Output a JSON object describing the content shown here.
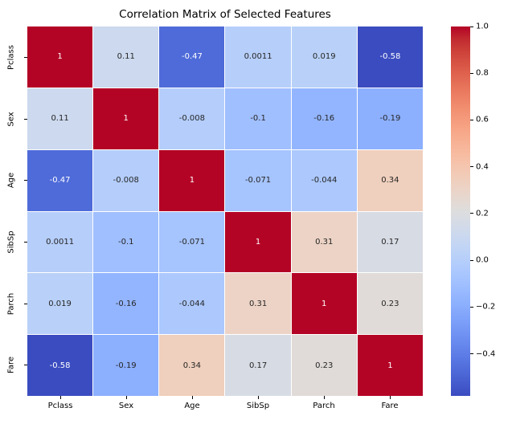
{
  "chart_data": {
    "type": "heatmap",
    "title": "Correlation Matrix of Selected Features",
    "xlabel": "",
    "ylabel": "",
    "categories": [
      "Pclass",
      "Sex",
      "Age",
      "SibSp",
      "Parch",
      "Fare"
    ],
    "matrix": [
      [
        1,
        0.11,
        -0.47,
        0.0011,
        0.019,
        -0.58
      ],
      [
        0.11,
        1,
        -0.008,
        -0.1,
        -0.16,
        -0.19
      ],
      [
        -0.47,
        -0.008,
        1,
        -0.071,
        -0.044,
        0.34
      ],
      [
        0.0011,
        -0.1,
        -0.071,
        1,
        0.31,
        0.17
      ],
      [
        0.019,
        -0.16,
        -0.044,
        0.31,
        1,
        0.23
      ],
      [
        -0.58,
        -0.19,
        0.34,
        0.17,
        0.23,
        1
      ]
    ],
    "cell_labels": [
      [
        "1",
        "0.11",
        "-0.47",
        "0.0011",
        "0.019",
        "-0.58"
      ],
      [
        "0.11",
        "1",
        "-0.008",
        "-0.1",
        "-0.16",
        "-0.19"
      ],
      [
        "-0.47",
        "-0.008",
        "1",
        "-0.071",
        "-0.044",
        "0.34"
      ],
      [
        "0.0011",
        "-0.1",
        "-0.071",
        "1",
        "0.31",
        "0.17"
      ],
      [
        "0.019",
        "-0.16",
        "-0.044",
        "0.31",
        "1",
        "0.23"
      ],
      [
        "-0.58",
        "-0.19",
        "0.34",
        "0.17",
        "0.23",
        "1"
      ]
    ],
    "colormap": "coolwarm",
    "vmin": -0.58,
    "vmax": 1.0,
    "grid_lines": "white",
    "legend_position": "none",
    "colorbar": {
      "position": "right",
      "ticks": [
        {
          "value": 1.0,
          "label": "1.0"
        },
        {
          "value": 0.8,
          "label": "0.8"
        },
        {
          "value": 0.6,
          "label": "0.6"
        },
        {
          "value": 0.4,
          "label": "0.4"
        },
        {
          "value": 0.2,
          "label": "0.2"
        },
        {
          "value": 0.0,
          "label": "0.0"
        },
        {
          "value": -0.2,
          "label": "−0.2"
        },
        {
          "value": -0.4,
          "label": "−0.4"
        }
      ]
    },
    "colors": {
      "annot_text_dark": "#262626",
      "annot_text_light": "#ffffff",
      "background": "#ffffff",
      "cmap_low": "#3b4cc0",
      "cmap_mid": "#dddddd",
      "cmap_high": "#b40426"
    }
  }
}
